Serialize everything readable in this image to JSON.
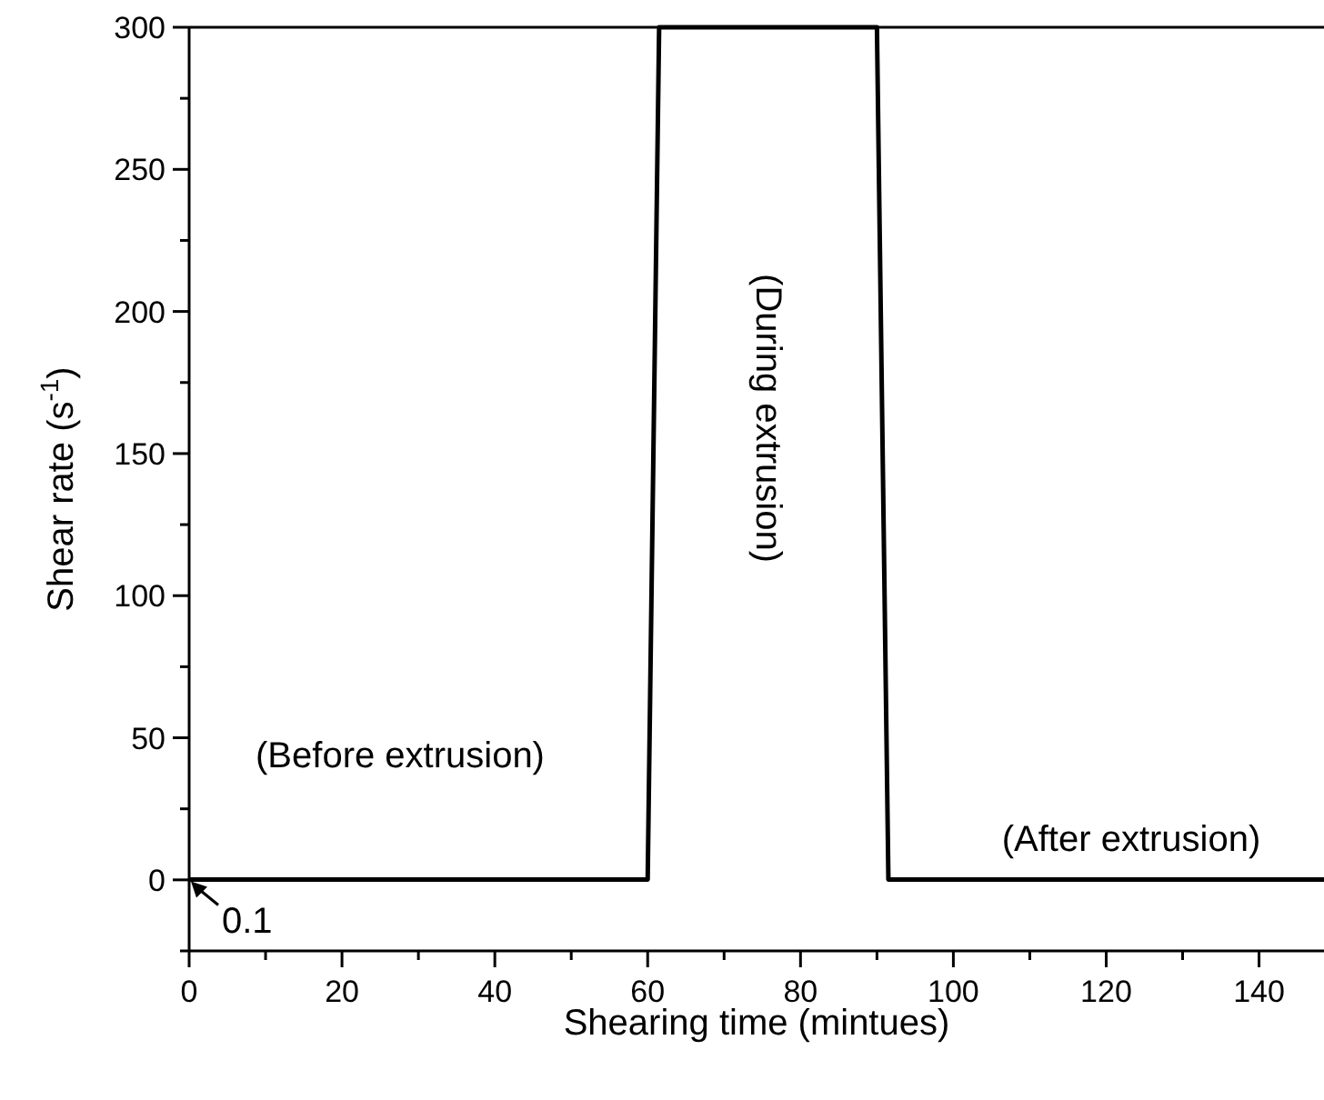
{
  "chart_data": {
    "type": "line",
    "xlabel": "Shearing time (mintues)",
    "ylabel": "Shear rate (s$^{-1}$)",
    "x": [
      0,
      60,
      61.5,
      90,
      91.5,
      148.5
    ],
    "series": [
      {
        "color": "#000000",
        "values": [
          0.1,
          0.1,
          300,
          300,
          0.1,
          0.1
        ]
      }
    ],
    "xlim": [
      0,
      148.5
    ],
    "ylim": [
      -25,
      300
    ],
    "xticks": [
      0,
      {
        "value": 10,
        "label": null
      },
      20,
      {
        "value": 30,
        "label": null
      },
      40,
      {
        "value": 50,
        "label": null
      },
      60,
      {
        "value": 70,
        "label": null
      },
      80,
      {
        "value": 90,
        "label": null
      },
      100,
      {
        "value": 110,
        "label": null
      },
      120,
      {
        "value": 130,
        "label": null
      },
      140
    ],
    "yticks": [
      {
        "value": -25,
        "label": null
      },
      0,
      {
        "value": 25,
        "label": null
      },
      50,
      {
        "value": 75,
        "label": null
      },
      100,
      {
        "value": 125,
        "label": null
      },
      150,
      {
        "value": 175,
        "label": null
      },
      200,
      {
        "value": 225,
        "label": null
      },
      250,
      {
        "value": 275,
        "label": null
      },
      300
    ],
    "annotations": [
      "(Before extrusion)",
      "(During extrusion)",
      "(After extrusion)",
      {
        "text": "0.1",
        "x": 0,
        "y": 0.1
      }
    ],
    "grid": false,
    "marker": "none",
    "line_style": "solid"
  }
}
